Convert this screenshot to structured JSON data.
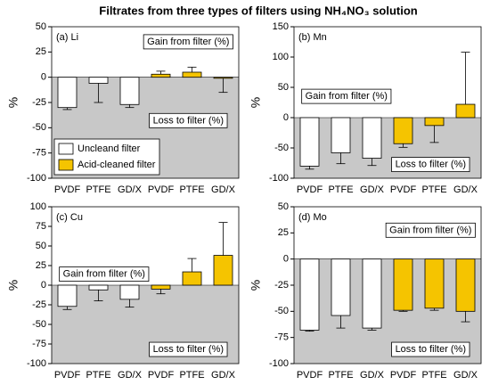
{
  "title": "Filtrates from three types of filters using NH₄NO₃ solution",
  "chart_data": [
    {
      "type": "bar",
      "title": "(a) Li",
      "ylabel": "%",
      "categories": [
        "PVDF",
        "PTFE",
        "GD/X",
        "PVDF",
        "PTFE",
        "GD/X"
      ],
      "series": [
        {
          "name": "Uncleand filter",
          "color": "#ffffff",
          "values": [
            -30,
            -6,
            -27,
            null,
            null,
            null
          ],
          "errors": [
            2,
            19,
            3,
            null,
            null,
            null
          ]
        },
        {
          "name": "Acid-cleaned filter",
          "color": "#f5c400",
          "values": [
            null,
            null,
            null,
            3,
            5,
            -1
          ],
          "errors": [
            null,
            null,
            null,
            3,
            5,
            14
          ]
        }
      ],
      "ylim": [
        -100,
        50
      ],
      "yticks": [
        -100,
        -75,
        -50,
        -25,
        0,
        25,
        50
      ],
      "annotations": [
        "Gain from filter (%)",
        "Loss to filter (%)"
      ],
      "legend": "lower left"
    },
    {
      "type": "bar",
      "title": "(b) Mn",
      "ylabel": "%",
      "categories": [
        "PVDF",
        "PTFE",
        "GD/X",
        "PVDF",
        "PTFE",
        "GD/X"
      ],
      "series": [
        {
          "color": "#ffffff",
          "values": [
            -80,
            -58,
            -67,
            null,
            null,
            null
          ],
          "errors": [
            5,
            18,
            12,
            null,
            null,
            null
          ]
        },
        {
          "color": "#f5c400",
          "values": [
            null,
            null,
            null,
            -43,
            -13,
            22
          ],
          "errors": [
            null,
            null,
            null,
            6,
            28,
            86
          ]
        }
      ],
      "ylim": [
        -100,
        150
      ],
      "yticks": [
        -100,
        -50,
        0,
        50,
        100,
        150
      ],
      "annotations": [
        "Gain from filter (%)",
        "Loss to filter (%)"
      ]
    },
    {
      "type": "bar",
      "title": "(c) Cu",
      "ylabel": "%",
      "categories": [
        "PVDF",
        "PTFE",
        "GD/X",
        "PVDF",
        "PTFE",
        "GD/X"
      ],
      "series": [
        {
          "color": "#ffffff",
          "values": [
            -27,
            -6,
            -18,
            null,
            null,
            null
          ],
          "errors": [
            4,
            14,
            10,
            null,
            null,
            null
          ]
        },
        {
          "color": "#f5c400",
          "values": [
            null,
            null,
            null,
            -5,
            17,
            38
          ],
          "errors": [
            null,
            null,
            null,
            6,
            17,
            42
          ]
        }
      ],
      "ylim": [
        -100,
        100
      ],
      "yticks": [
        -100,
        -75,
        -50,
        -25,
        0,
        25,
        50,
        75,
        100
      ],
      "annotations": [
        "Gain from filter (%)",
        "Loss to filter (%)"
      ]
    },
    {
      "type": "bar",
      "title": "(d) Mo",
      "ylabel": "%",
      "categories": [
        "PVDF",
        "PTFE",
        "GD/X",
        "PVDF",
        "PTFE",
        "GD/X"
      ],
      "series": [
        {
          "color": "#ffffff",
          "values": [
            -68,
            -54,
            -66,
            null,
            null,
            null
          ],
          "errors": [
            1,
            12,
            2,
            null,
            null,
            null
          ]
        },
        {
          "color": "#f5c400",
          "values": [
            null,
            null,
            null,
            -49,
            -47,
            -50
          ],
          "errors": [
            null,
            null,
            null,
            1,
            2,
            10
          ]
        }
      ],
      "ylim": [
        -100,
        50
      ],
      "yticks": [
        -100,
        -75,
        -50,
        -25,
        0,
        25,
        50
      ],
      "annotations": [
        "Gain from filter (%)",
        "Loss to filter (%)"
      ]
    }
  ]
}
